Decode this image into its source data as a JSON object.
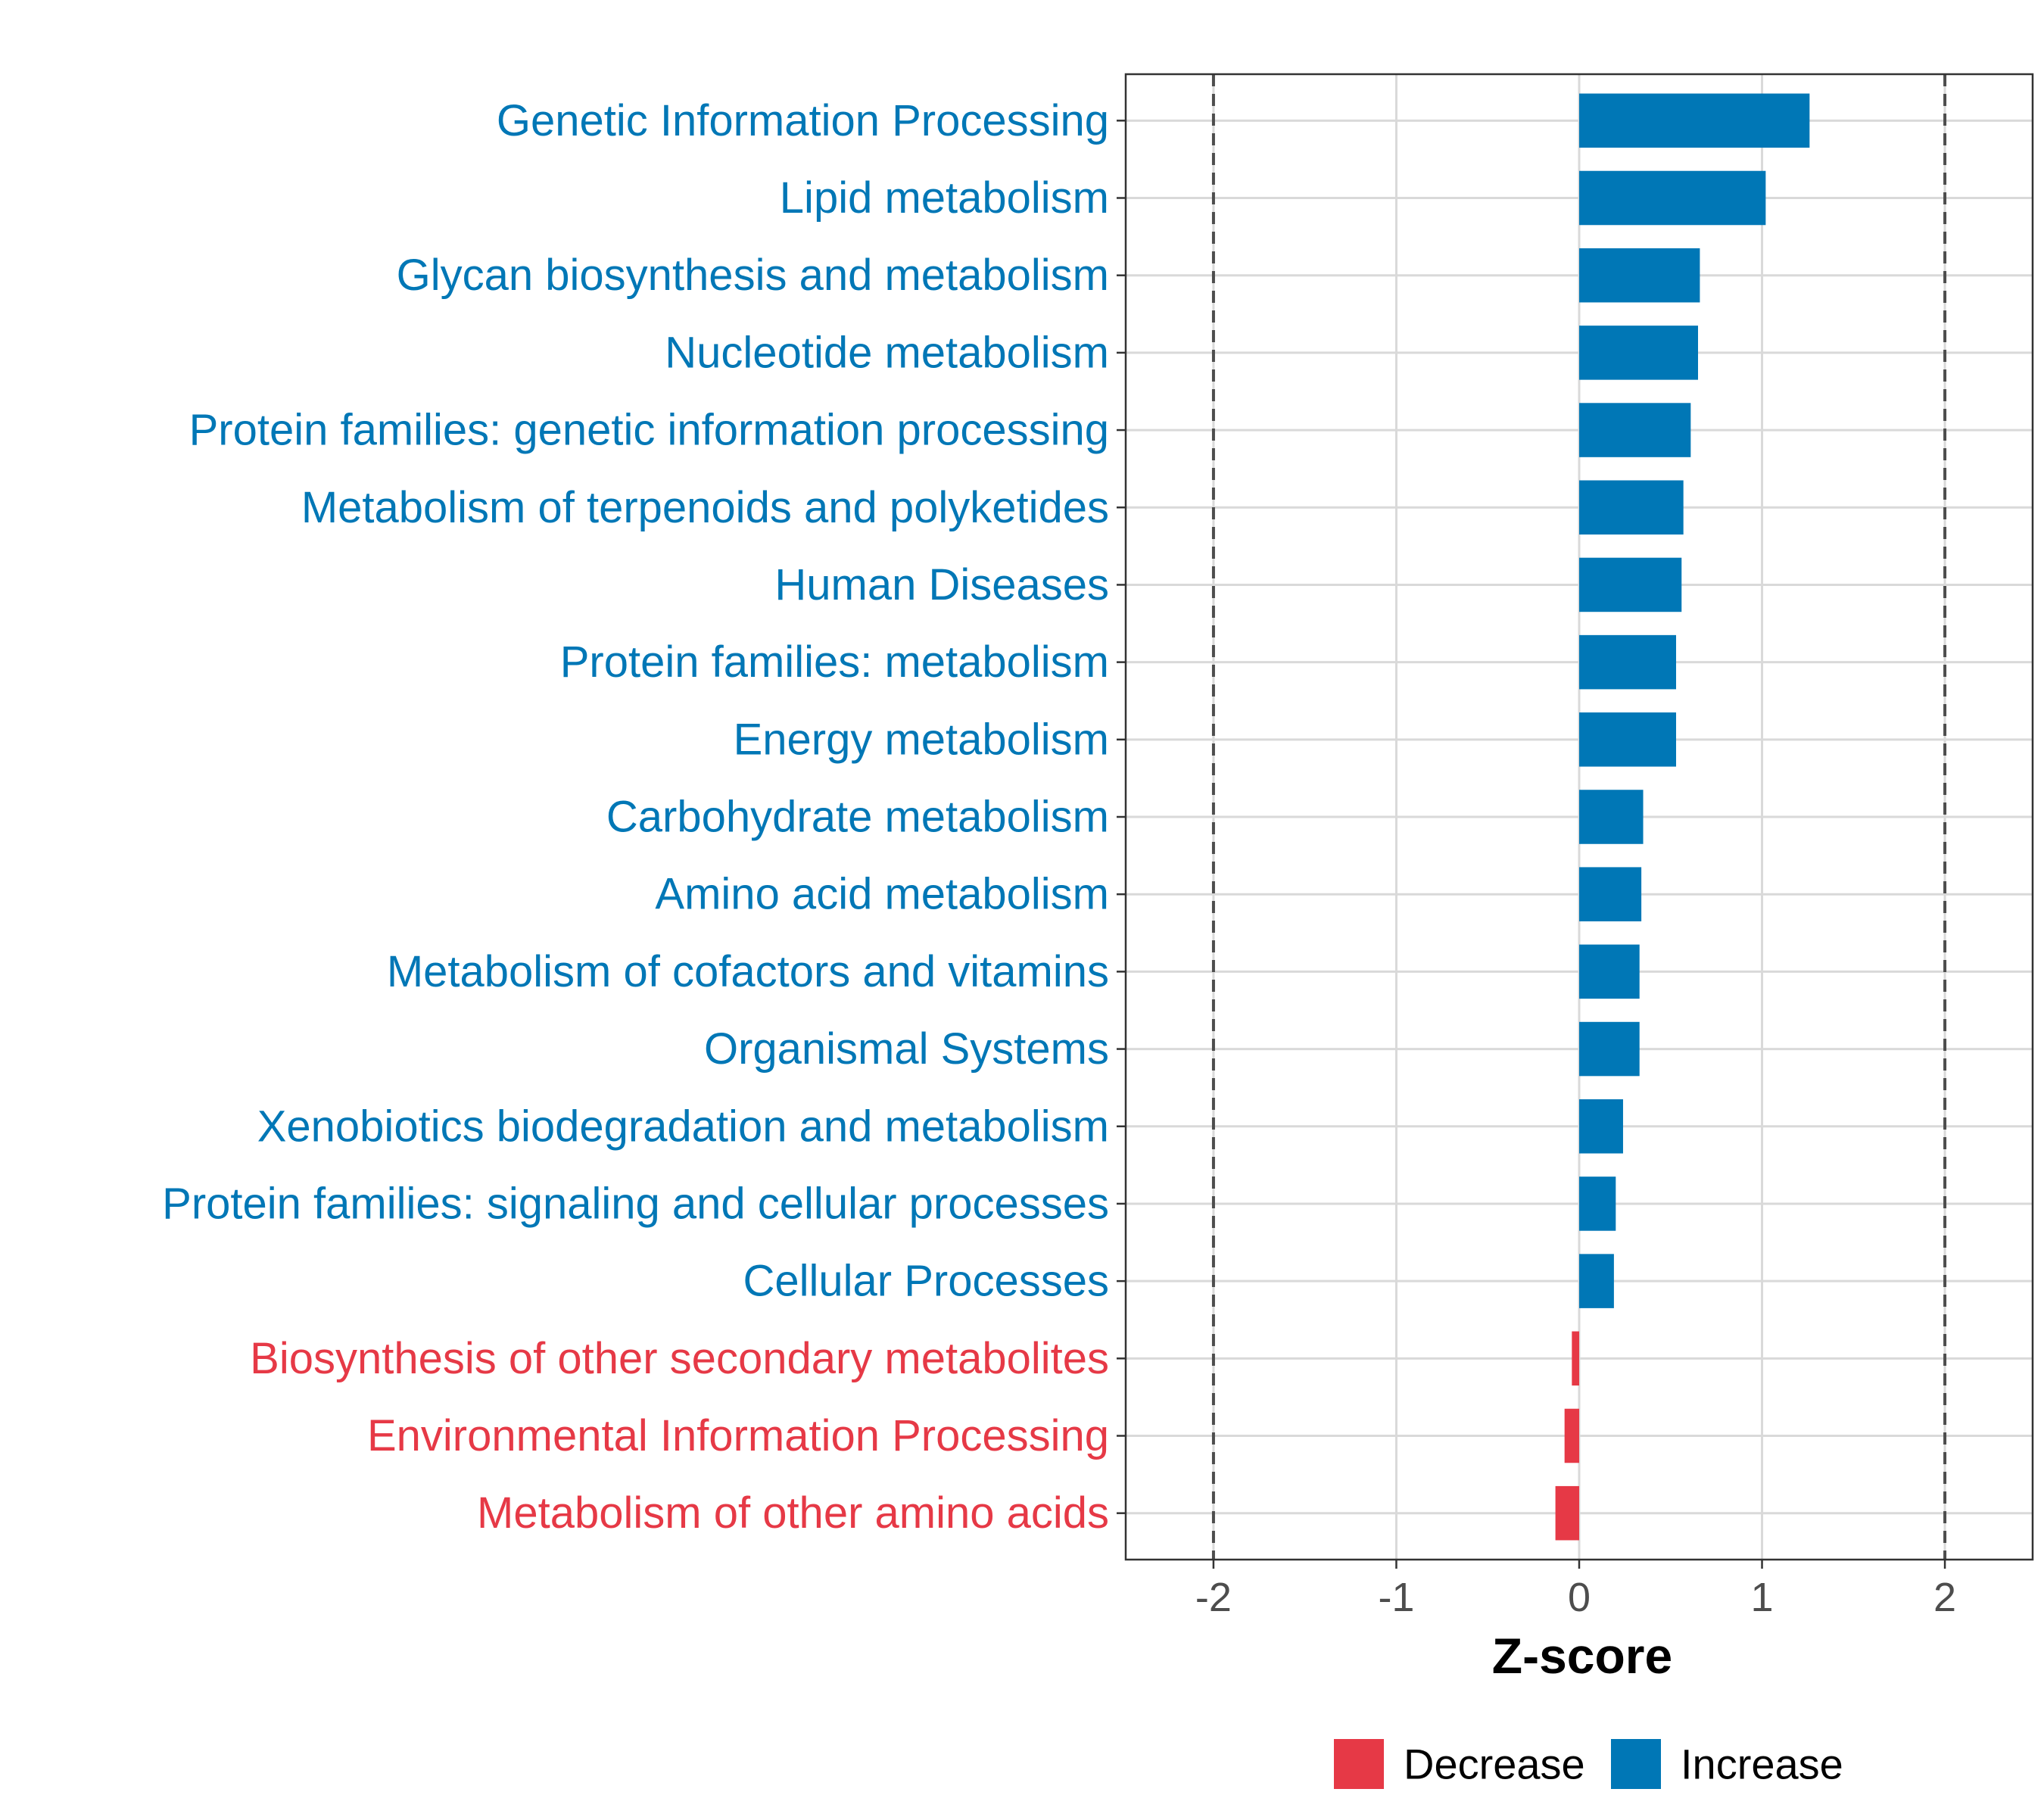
{
  "chart_data": {
    "type": "bar",
    "orientation": "horizontal",
    "xlabel": "Z-score",
    "ylabel": "",
    "xlim": [
      -2.48,
      2.48
    ],
    "xticks": [
      -2,
      -1,
      0,
      1,
      2
    ],
    "xtick_labels": [
      "-2",
      "-1",
      "0",
      "1",
      "2"
    ],
    "reference_lines": [
      -2,
      2
    ],
    "grid": true,
    "legend_position": "bottom",
    "categories": [
      "Genetic Information Processing",
      "Lipid metabolism",
      "Glycan biosynthesis and metabolism",
      "Nucleotide metabolism",
      "Protein families: genetic information processing",
      "Metabolism of terpenoids and polyketides",
      "Human Diseases",
      "Protein families: metabolism",
      "Energy metabolism",
      "Carbohydrate metabolism",
      "Amino acid metabolism",
      "Metabolism of cofactors and vitamins",
      "Organismal Systems",
      "Xenobiotics biodegradation and metabolism",
      "Protein families: signaling and cellular processes",
      "Cellular Processes",
      "Biosynthesis of other secondary metabolites",
      "Environmental Information Processing",
      "Metabolism of other amino acids"
    ],
    "values": [
      1.26,
      1.02,
      0.66,
      0.65,
      0.61,
      0.57,
      0.56,
      0.53,
      0.53,
      0.35,
      0.34,
      0.33,
      0.33,
      0.24,
      0.2,
      0.19,
      -0.04,
      -0.08,
      -0.13
    ],
    "groups": [
      "Increase",
      "Increase",
      "Increase",
      "Increase",
      "Increase",
      "Increase",
      "Increase",
      "Increase",
      "Increase",
      "Increase",
      "Increase",
      "Increase",
      "Increase",
      "Increase",
      "Increase",
      "Increase",
      "Decrease",
      "Decrease",
      "Decrease"
    ],
    "legend": [
      {
        "name": "Decrease",
        "color": "#E63946"
      },
      {
        "name": "Increase",
        "color": "#0077B6"
      }
    ]
  }
}
